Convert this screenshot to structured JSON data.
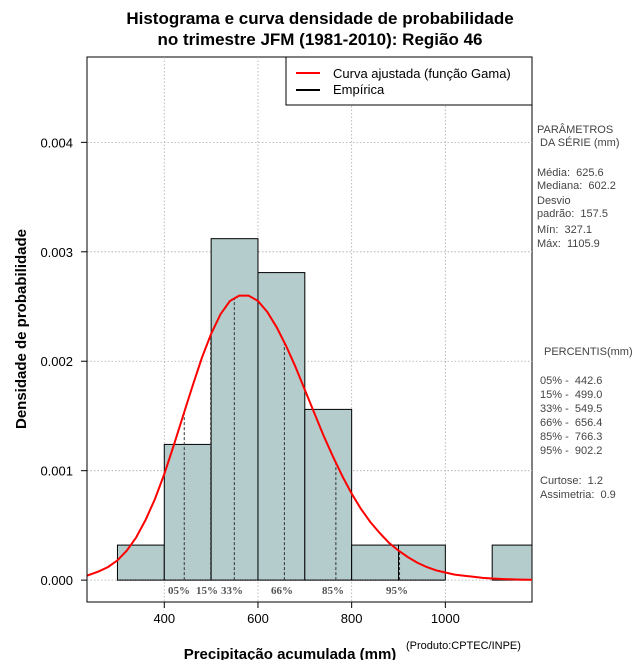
{
  "chart_data": {
    "type": "histogram",
    "title": [
      "Histograma e curva densidade de probabilidade",
      "no trimestre JFM (1981-2010): Região 46"
    ],
    "xlabel": "Precipitação acumulada (mm)",
    "ylabel": "Densidade de probabilidade",
    "xlim": [
      235,
      1185
    ],
    "ylim": [
      -0.0002,
      0.00478
    ],
    "x_ticks": [
      400,
      600,
      800,
      1000
    ],
    "x_tick_labels": [
      "400",
      "600",
      "800",
      "1000"
    ],
    "y_ticks": [
      0.0,
      0.001,
      0.002,
      0.003,
      0.004
    ],
    "y_tick_labels": [
      "0.000",
      "0.001",
      "0.002",
      "0.003",
      "0.004"
    ],
    "grid": true,
    "bar_color": "#b4cccc",
    "curve_color": "#ff0000",
    "bins": [
      {
        "from": 300,
        "to": 400,
        "density": 0.00032
      },
      {
        "from": 400,
        "to": 500,
        "density": 0.00124
      },
      {
        "from": 500,
        "to": 600,
        "density": 0.00312
      },
      {
        "from": 600,
        "to": 700,
        "density": 0.00281
      },
      {
        "from": 700,
        "to": 800,
        "density": 0.00156
      },
      {
        "from": 800,
        "to": 900,
        "density": 0.00032
      },
      {
        "from": 900,
        "to": 1000,
        "density": 0.00032
      },
      {
        "from": 1000,
        "to": 1100,
        "density": 0.0
      },
      {
        "from": 1100,
        "to": 1200,
        "density": 0.00032
      }
    ],
    "fitted_curve": {
      "name": "Curva ajustada (função Gama)",
      "x": [
        235,
        260,
        280,
        300,
        320,
        340,
        360,
        380,
        400,
        420,
        440,
        460,
        480,
        500,
        520,
        540,
        560,
        580,
        600,
        620,
        640,
        660,
        680,
        700,
        720,
        740,
        760,
        780,
        800,
        820,
        840,
        860,
        880,
        900,
        920,
        940,
        960,
        980,
        1000,
        1020,
        1040,
        1060,
        1080,
        1100,
        1120,
        1140,
        1160,
        1185
      ],
      "y": [
        4e-05,
        8e-05,
        0.00012,
        0.00018,
        0.00027,
        0.00039,
        0.00055,
        0.00074,
        0.00097,
        0.00123,
        0.0015,
        0.00177,
        0.00203,
        0.00225,
        0.00243,
        0.00255,
        0.0026,
        0.0026,
        0.00255,
        0.00245,
        0.00231,
        0.00214,
        0.00195,
        0.00174,
        0.00153,
        0.00132,
        0.00113,
        0.00095,
        0.00079,
        0.00065,
        0.00053,
        0.00043,
        0.00034,
        0.00027,
        0.00021,
        0.00016,
        0.00012,
        9e-05,
        7e-05,
        5e-05,
        4e-05,
        3e-05,
        2e-05,
        1.5e-05,
        1e-05,
        7e-06,
        5e-06,
        3e-06
      ]
    },
    "empirical_name": "Empírica",
    "percentile_markers": [
      {
        "label": "05%",
        "x": 442.6
      },
      {
        "label": "15%",
        "x": 499.0
      },
      {
        "label": "33%",
        "x": 549.5
      },
      {
        "label": "66%",
        "x": 656.4
      },
      {
        "label": "85%",
        "x": 766.3
      },
      {
        "label": "95%",
        "x": 902.2
      }
    ],
    "legend_position": "top-right"
  },
  "side_panel": {
    "params_title_1": "PARÂMETROS",
    "params_title_2": " DA SÉRIE (mm)",
    "media": "Média:  625.6",
    "mediana": "Mediana:  602.2",
    "desvio_1": "Desvio",
    "desvio_2": "padrão:  157.5",
    "min": "Mín:  327.1",
    "max": "Máx:  1105.9",
    "percentis_title": "PERCENTIS(mm)",
    "p05": "05% -  442.6",
    "p15": "15% -  499.0",
    "p33": "33% -  549.5",
    "p66": "66% -  656.4",
    "p85": "85% -  766.3",
    "p95": "95% -  902.2",
    "curtose": "Curtose:  1.2",
    "assimetria": "Assimetria:  0.9"
  },
  "credit": "(Produto:CPTEC/INPE)"
}
